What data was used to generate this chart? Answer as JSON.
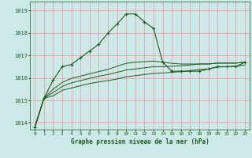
{
  "xlabel": "Graphe pression niveau de la mer (hPa)",
  "background_color": "#cce8e8",
  "grid_color": "#f0a0a0",
  "line_color": "#1a5c1a",
  "ylim": [
    1013.7,
    1019.4
  ],
  "xlim": [
    -0.5,
    23.5
  ],
  "yticks": [
    1014,
    1015,
    1016,
    1017,
    1018,
    1019
  ],
  "xticks": [
    0,
    1,
    2,
    3,
    4,
    5,
    6,
    7,
    8,
    9,
    10,
    11,
    12,
    13,
    14,
    15,
    16,
    17,
    18,
    19,
    20,
    21,
    22,
    23
  ],
  "series1": [
    1013.8,
    1015.1,
    1015.9,
    1016.5,
    1016.6,
    1016.9,
    1017.2,
    1017.5,
    1018.0,
    1018.4,
    1018.85,
    1018.85,
    1018.5,
    1018.2,
    1016.7,
    1016.3,
    1016.3,
    1016.3,
    1016.3,
    1016.4,
    1016.5,
    1016.5,
    1016.5,
    1016.7
  ],
  "series2": [
    1013.8,
    1015.1,
    1015.2,
    1015.45,
    1015.55,
    1015.65,
    1015.75,
    1015.82,
    1015.88,
    1015.95,
    1016.05,
    1016.1,
    1016.15,
    1016.2,
    1016.22,
    1016.25,
    1016.28,
    1016.32,
    1016.38,
    1016.4,
    1016.48,
    1016.5,
    1016.52,
    1016.58
  ],
  "series3": [
    1013.8,
    1015.1,
    1015.35,
    1015.62,
    1015.78,
    1015.88,
    1015.98,
    1016.08,
    1016.15,
    1016.25,
    1016.35,
    1016.4,
    1016.45,
    1016.5,
    1016.5,
    1016.52,
    1016.54,
    1016.58,
    1016.62,
    1016.62,
    1016.66,
    1016.66,
    1016.66,
    1016.7
  ],
  "series4": [
    1013.8,
    1015.1,
    1015.5,
    1015.8,
    1015.98,
    1016.08,
    1016.18,
    1016.28,
    1016.38,
    1016.52,
    1016.65,
    1016.7,
    1016.72,
    1016.75,
    1016.7,
    1016.65,
    1016.62,
    1016.62,
    1016.62,
    1016.62,
    1016.66,
    1016.66,
    1016.66,
    1016.7
  ]
}
